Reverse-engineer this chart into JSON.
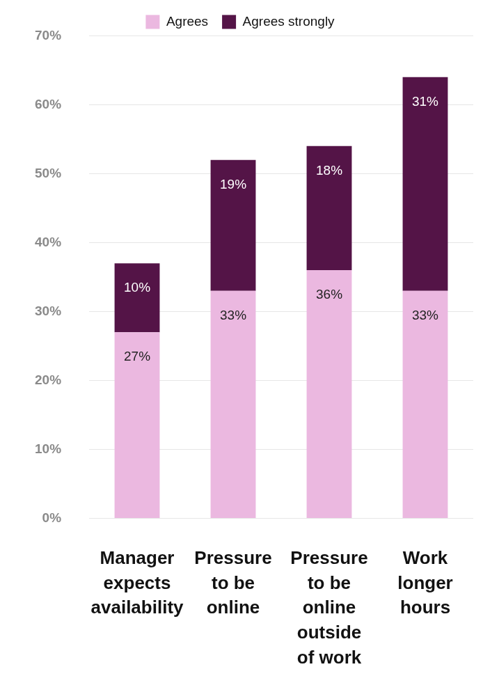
{
  "chart_data": {
    "type": "bar",
    "stacked": true,
    "categories": [
      "Manager expects availability",
      "Pressure to be online",
      "Pressure to be online outside of work",
      "Work longer hours"
    ],
    "series": [
      {
        "name": "Agrees",
        "color": "#ebb8e0",
        "values": [
          27,
          33,
          36,
          33
        ],
        "value_labels": [
          "27%",
          "33%",
          "36%",
          "33%"
        ]
      },
      {
        "name": "Agrees strongly",
        "color": "#541447",
        "values": [
          10,
          19,
          18,
          31
        ],
        "value_labels": [
          "10%",
          "19%",
          "18%",
          "31%"
        ]
      }
    ],
    "ylim": [
      0,
      70
    ],
    "yticks": [
      {
        "value": 0,
        "label": "0%"
      },
      {
        "value": 10,
        "label": "10%"
      },
      {
        "value": 20,
        "label": "20%"
      },
      {
        "value": 30,
        "label": "30%"
      },
      {
        "value": 40,
        "label": "40%"
      },
      {
        "value": 50,
        "label": "50%"
      },
      {
        "value": 60,
        "label": "60%"
      },
      {
        "value": 70,
        "label": "70%"
      }
    ],
    "grid": "y",
    "legend": "top"
  }
}
